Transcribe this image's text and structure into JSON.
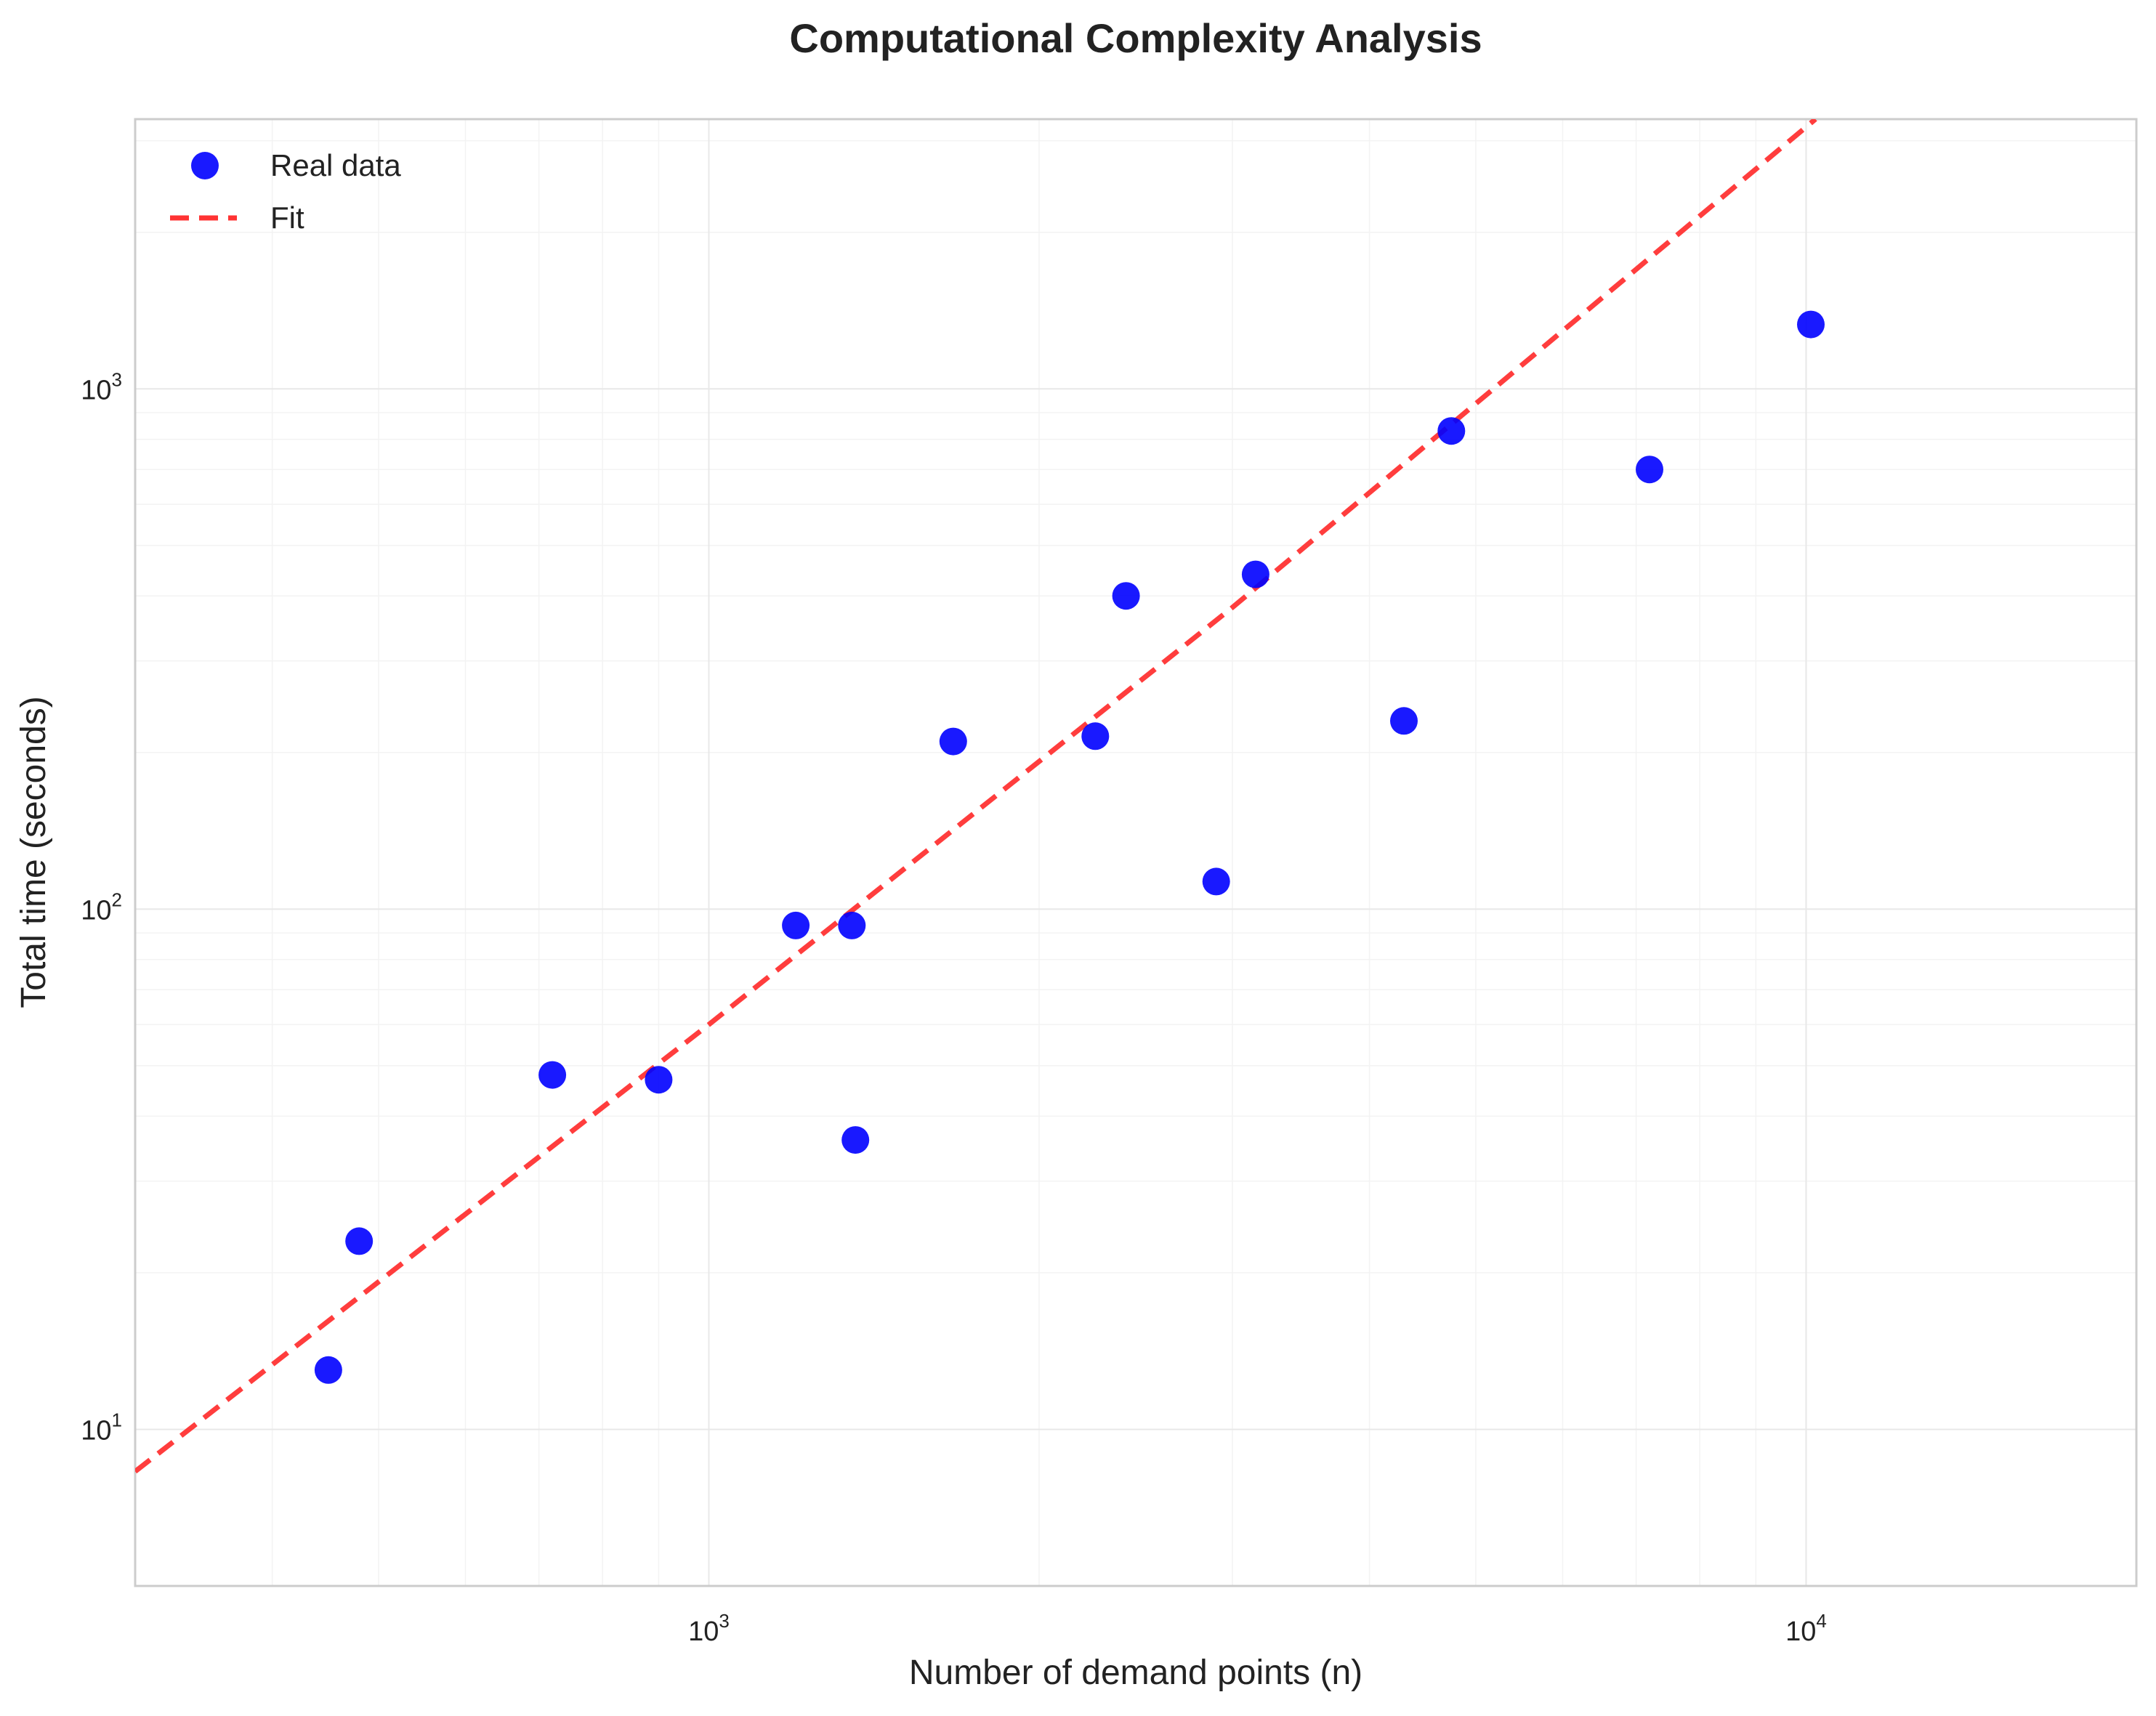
{
  "chart_data": {
    "type": "scatter",
    "title": "Computational Complexity Analysis",
    "xlabel": "Number of demand points (n)",
    "ylabel": "Total time (seconds)",
    "xscale": "log",
    "yscale": "log",
    "xlim": [
      300,
      20000
    ],
    "ylim": [
      5,
      3300
    ],
    "grid": true,
    "legend_position": "top-left",
    "x_ticks": [
      {
        "value": 1000,
        "base": "10",
        "exp": "3"
      },
      {
        "value": 10000,
        "base": "10",
        "exp": "4"
      }
    ],
    "y_ticks": [
      {
        "value": 10,
        "base": "10",
        "exp": "1"
      },
      {
        "value": 100,
        "base": "10",
        "exp": "2"
      },
      {
        "value": 1000,
        "base": "10",
        "exp": "3"
      }
    ],
    "series": [
      {
        "name": "Real data",
        "kind": "scatter",
        "color": "#0000ff",
        "points": [
          {
            "x": 450,
            "y": 13
          },
          {
            "x": 480,
            "y": 23
          },
          {
            "x": 720,
            "y": 48
          },
          {
            "x": 900,
            "y": 47
          },
          {
            "x": 1200,
            "y": 93
          },
          {
            "x": 1350,
            "y": 93
          },
          {
            "x": 1360,
            "y": 36
          },
          {
            "x": 1670,
            "y": 210
          },
          {
            "x": 2250,
            "y": 215
          },
          {
            "x": 2400,
            "y": 400
          },
          {
            "x": 2900,
            "y": 113
          },
          {
            "x": 3150,
            "y": 440
          },
          {
            "x": 4300,
            "y": 230
          },
          {
            "x": 4750,
            "y": 830
          },
          {
            "x": 7200,
            "y": 700
          },
          {
            "x": 10100,
            "y": 1330
          }
        ]
      },
      {
        "name": "Fit",
        "kind": "line",
        "style": "dashed",
        "color": "#ff3333",
        "points": [
          {
            "x": 300,
            "y": 8.3
          },
          {
            "x": 1000,
            "y": 60
          },
          {
            "x": 3000,
            "y": 380
          },
          {
            "x": 10200,
            "y": 3300
          }
        ]
      }
    ]
  }
}
